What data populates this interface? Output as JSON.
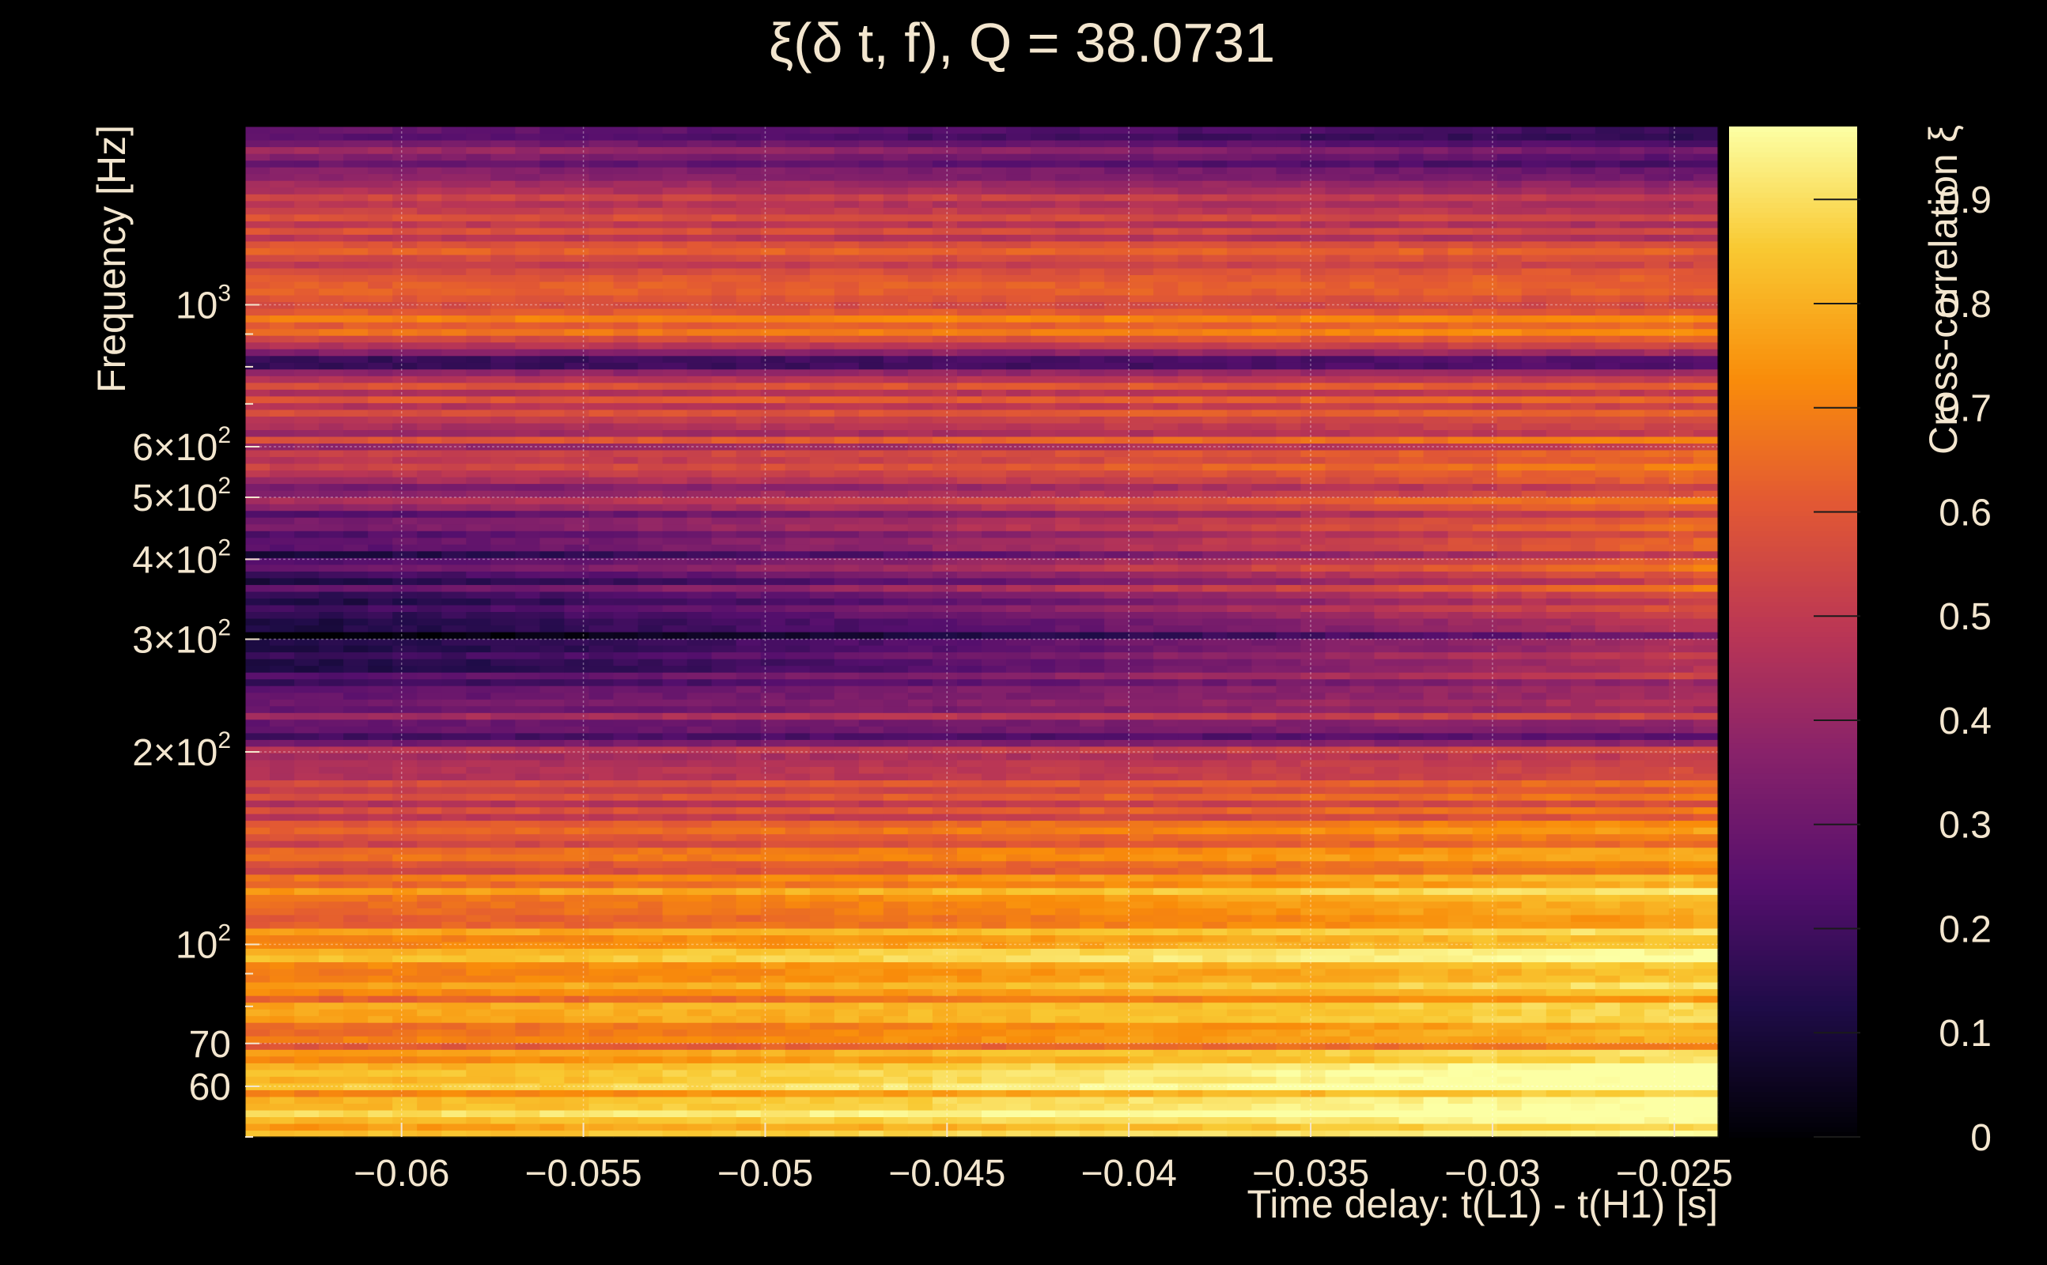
{
  "chart_data": {
    "type": "heatmap",
    "title": "ξ(δ t, f), Q = 38.0731",
    "xlabel": "Time delay: t(L1) - t(H1) [s]",
    "ylabel": "Frequency [Hz]",
    "colorbar_label": "Cross-correlation ξ",
    "xlim": [
      -0.0643,
      -0.0238
    ],
    "ylim": [
      50,
      1900
    ],
    "y_scale": "log",
    "grid": true,
    "colormap": "inferno",
    "colors": {
      "background": "#000000",
      "text": "#f3e6cf",
      "grid": "#ffffff"
    },
    "x_ticks": [
      {
        "value": -0.06,
        "label": "−0.06"
      },
      {
        "value": -0.055,
        "label": "−0.055"
      },
      {
        "value": -0.05,
        "label": "−0.05"
      },
      {
        "value": -0.045,
        "label": "−0.045"
      },
      {
        "value": -0.04,
        "label": "−0.04"
      },
      {
        "value": -0.035,
        "label": "−0.035"
      },
      {
        "value": -0.03,
        "label": "−0.03"
      },
      {
        "value": -0.025,
        "label": "−0.025"
      }
    ],
    "y_ticks": [
      {
        "value": 60,
        "label": "60",
        "sup": ""
      },
      {
        "value": 70,
        "label": "70",
        "sup": ""
      },
      {
        "value": 100,
        "label": "10",
        "sup": "2"
      },
      {
        "value": 200,
        "label": "2×10",
        "sup": "2"
      },
      {
        "value": 300,
        "label": "3×10",
        "sup": "2"
      },
      {
        "value": 400,
        "label": "4×10",
        "sup": "2"
      },
      {
        "value": 500,
        "label": "5×10",
        "sup": "2"
      },
      {
        "value": 600,
        "label": "6×10",
        "sup": "2"
      },
      {
        "value": 1000,
        "label": "10",
        "sup": "3"
      }
    ],
    "colorbar_ticks": [
      {
        "value": 0,
        "label": "0"
      },
      {
        "value": 0.1,
        "label": "0.1"
      },
      {
        "value": 0.2,
        "label": "0.2"
      },
      {
        "value": 0.3,
        "label": "0.3"
      },
      {
        "value": 0.4,
        "label": "0.4"
      },
      {
        "value": 0.5,
        "label": "0.5"
      },
      {
        "value": 0.6,
        "label": "0.6"
      },
      {
        "value": 0.7,
        "label": "0.7"
      },
      {
        "value": 0.8,
        "label": "0.8"
      },
      {
        "value": 0.9,
        "label": "0.9"
      }
    ],
    "colorbar_range": [
      0,
      0.97
    ],
    "value_profile": {
      "freq_hz": [
        50,
        55,
        62,
        66,
        70,
        73,
        78,
        85,
        95,
        105,
        120,
        135,
        160,
        180,
        195,
        210,
        230,
        250,
        270,
        300,
        330,
        370,
        420,
        480,
        550,
        650,
        760,
        820,
        900,
        1000,
        1150,
        1300,
        1500,
        1700,
        1900
      ],
      "xi_left": [
        0.8,
        0.78,
        0.76,
        0.74,
        0.65,
        0.72,
        0.7,
        0.72,
        0.74,
        0.7,
        0.66,
        0.58,
        0.55,
        0.52,
        0.45,
        0.3,
        0.4,
        0.3,
        0.12,
        0.08,
        0.15,
        0.18,
        0.22,
        0.3,
        0.45,
        0.5,
        0.52,
        0.2,
        0.55,
        0.68,
        0.5,
        0.58,
        0.5,
        0.35,
        0.2
      ],
      "xi_right": [
        0.93,
        0.95,
        0.96,
        0.94,
        0.72,
        0.9,
        0.8,
        0.86,
        0.9,
        0.85,
        0.84,
        0.72,
        0.68,
        0.62,
        0.55,
        0.35,
        0.55,
        0.45,
        0.48,
        0.4,
        0.55,
        0.6,
        0.62,
        0.58,
        0.62,
        0.6,
        0.55,
        0.28,
        0.62,
        0.65,
        0.55,
        0.52,
        0.45,
        0.25,
        0.1
      ]
    }
  }
}
